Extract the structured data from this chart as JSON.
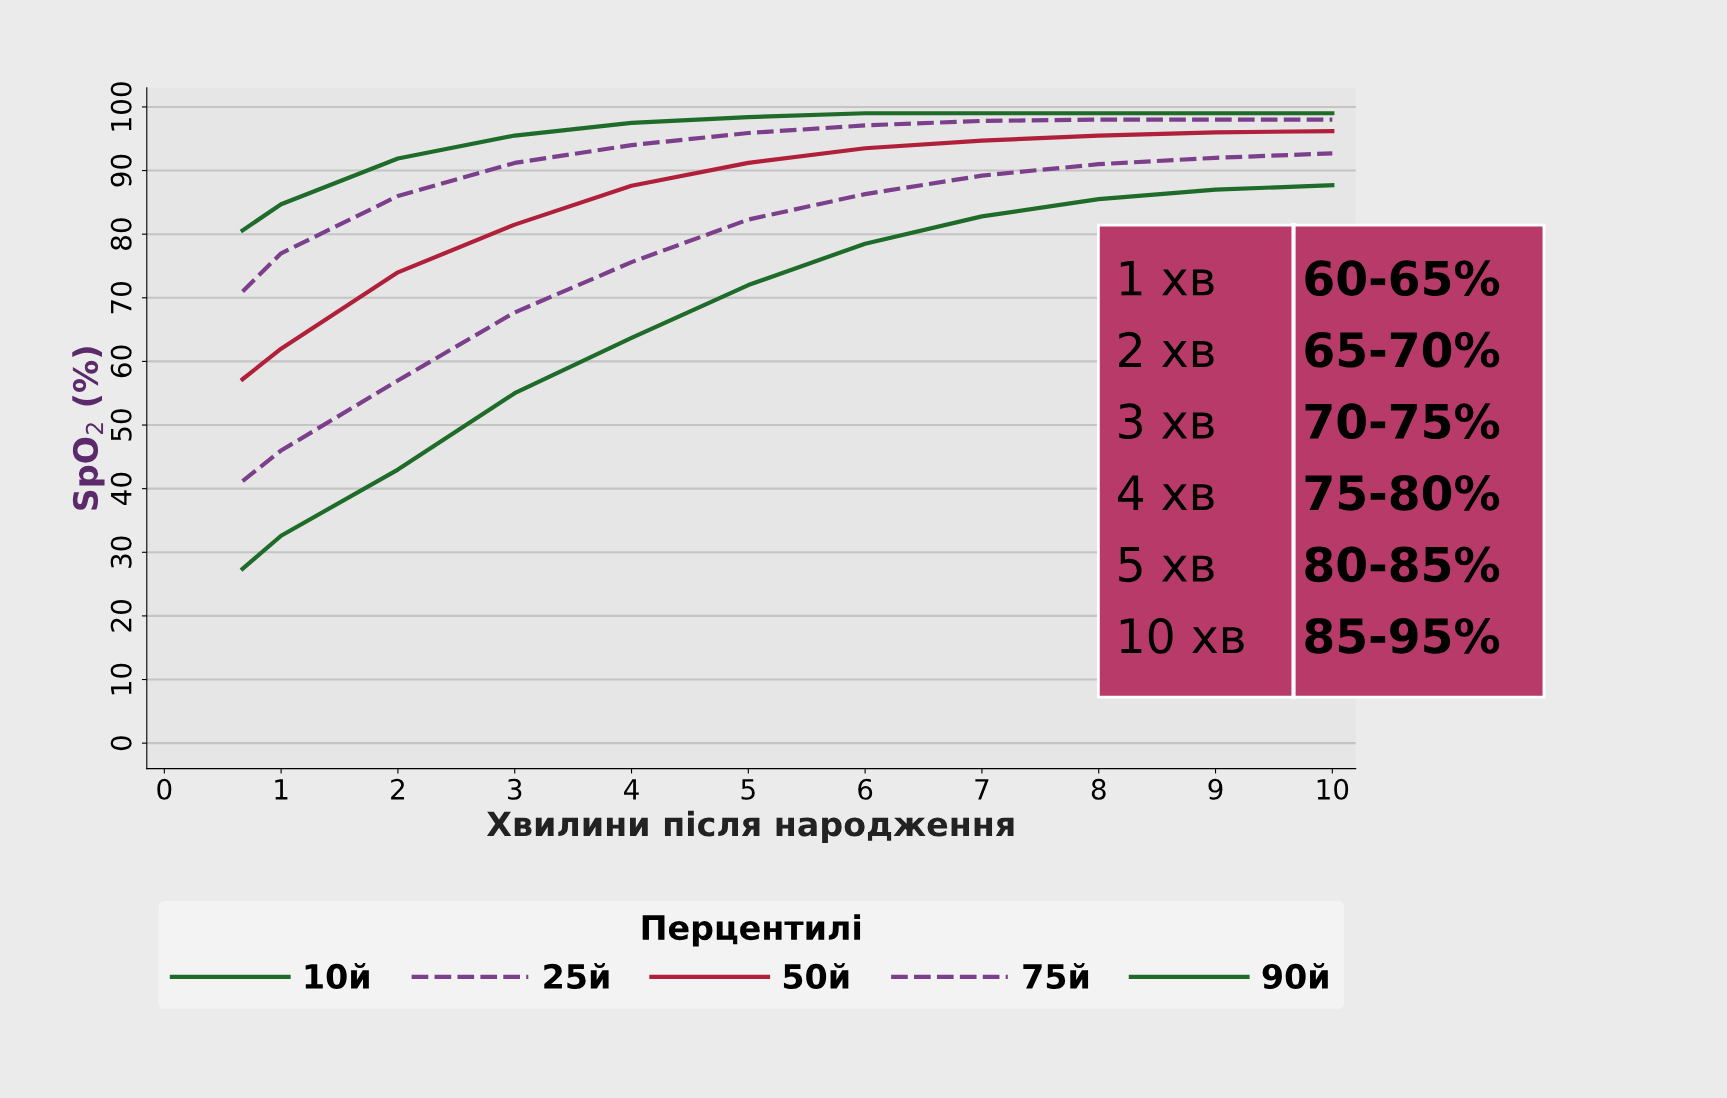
{
  "chart_data": {
    "type": "line",
    "xlabel": "Хвилини після народження",
    "ylabel": "SpO$_{2}$ (%)",
    "legend_title": "Перцентилі",
    "xlim": [
      -0.15,
      10.2
    ],
    "ylim": [
      -4,
      103
    ],
    "xticks": [
      0,
      1,
      2,
      3,
      4,
      5,
      6,
      7,
      8,
      9,
      10
    ],
    "yticks": [
      0,
      10,
      20,
      30,
      40,
      50,
      60,
      70,
      80,
      90,
      100
    ],
    "grid": "y",
    "legend": "bottom",
    "marker": "none",
    "x": [
      0.67,
      1,
      2,
      3,
      4,
      5,
      6,
      7,
      8,
      9,
      10
    ],
    "series": [
      {
        "name": "10й",
        "color": "#1e6b2a",
        "line_style": "solid",
        "values": [
          27.4,
          32.6,
          43,
          55,
          63.7,
          72,
          78.5,
          82.8,
          85.5,
          87,
          87.7
        ]
      },
      {
        "name": "25й",
        "color": "#7b3f8c",
        "line_style": "dashed",
        "values": [
          41.2,
          46,
          57,
          67.7,
          75.6,
          82.3,
          86.3,
          89.2,
          91,
          92,
          92.7
        ]
      },
      {
        "name": "50й",
        "color": "#b0203a",
        "line_style": "solid",
        "values": [
          57.2,
          62,
          74,
          81.5,
          87.6,
          91.2,
          93.5,
          94.7,
          95.5,
          96,
          96.2
        ]
      },
      {
        "name": "75й",
        "color": "#7b3f8c",
        "line_style": "dashed",
        "values": [
          71,
          77,
          86,
          91.2,
          94,
          95.9,
          97.1,
          97.8,
          98,
          98,
          98
        ]
      },
      {
        "name": "90й",
        "color": "#1e6b2a",
        "line_style": "solid",
        "values": [
          80.6,
          84.7,
          91.9,
          95.5,
          97.5,
          98.4,
          99,
          99,
          99,
          99,
          99
        ]
      }
    ],
    "annotations": [
      "1 хв",
      "60-65%",
      "2 хв",
      "65-70%",
      "3 хв",
      "70-75%",
      "4 хв",
      "75-80%",
      "5 хв",
      "80-85%",
      "10 хв",
      "85-95%"
    ]
  }
}
